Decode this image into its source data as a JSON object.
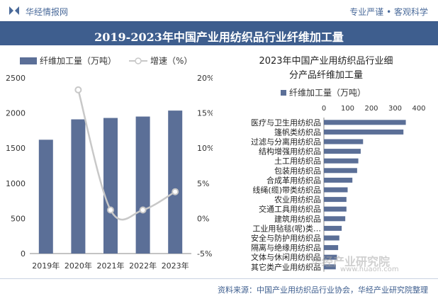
{
  "header": {
    "brand": "华经情报网",
    "tagline": "专业严谨 • 客观科学",
    "title": "2019-2023年中国产业用纺织品行业纤维加工量"
  },
  "colors": {
    "bar": "#5b6f97",
    "line": "#c8c8c8",
    "title_bg": "#3e5e8e",
    "accent": "#4a6a9a"
  },
  "chart_data": [
    {
      "type": "bar+line",
      "title": "",
      "categories": [
        "2019年",
        "2020年",
        "2021年",
        "2022年",
        "2023年"
      ],
      "series": [
        {
          "name": "纤维加工量（万吨）",
          "kind": "bar",
          "axis": "left",
          "values": [
            1620,
            1910,
            1930,
            1950,
            2035
          ]
        },
        {
          "name": "增速（%）",
          "kind": "line",
          "axis": "right",
          "values": [
            null,
            18.3,
            1.2,
            1.2,
            3.8
          ]
        }
      ],
      "y_left": {
        "min": 0,
        "max": 2500,
        "ticks": [
          0,
          500,
          1000,
          1500,
          2000,
          2500
        ]
      },
      "y_right": {
        "min": -5,
        "max": 20,
        "ticks": [
          "-5%",
          "0%",
          "5%",
          "10%",
          "15%",
          "20%"
        ]
      },
      "legend_position": "top"
    },
    {
      "type": "barh",
      "title_line1": "2023年中国产业用纺织品行业细",
      "title_line2": "分产品纤维加工量",
      "legend": "纤维加工量（万吨）",
      "categories": [
        "医疗与卫生用纺织品",
        "篷帆类纺织品",
        "过滤与分离用纺织品",
        "结构增强用纺织品",
        "土工用纺织品",
        "包装用纺织品",
        "合成革用纺织品",
        "线绳(缆)带类纺织品",
        "农业用纺织品",
        "交通工具用纺织品",
        "建筑用纺织品",
        "工业用毡毯(呢)类…",
        "安全与防护用纺织品",
        "隔离与绝缘用纺织品",
        "文体与休闲用纺织品",
        "其它类产业用纺织品"
      ],
      "values": [
        345,
        335,
        165,
        155,
        145,
        140,
        120,
        100,
        95,
        95,
        90,
        75,
        65,
        60,
        55,
        50
      ],
      "x_range": [
        0,
        400
      ],
      "x_ticks": [
        0,
        100,
        200,
        300,
        400
      ],
      "x_axis_position": "top"
    }
  ],
  "watermark": {
    "text": "华经产业研究院",
    "url": "www.huaon.com"
  },
  "footer": {
    "source": "资料来源：中国产业用纺织品行业协会，华经产业研究院整理"
  }
}
